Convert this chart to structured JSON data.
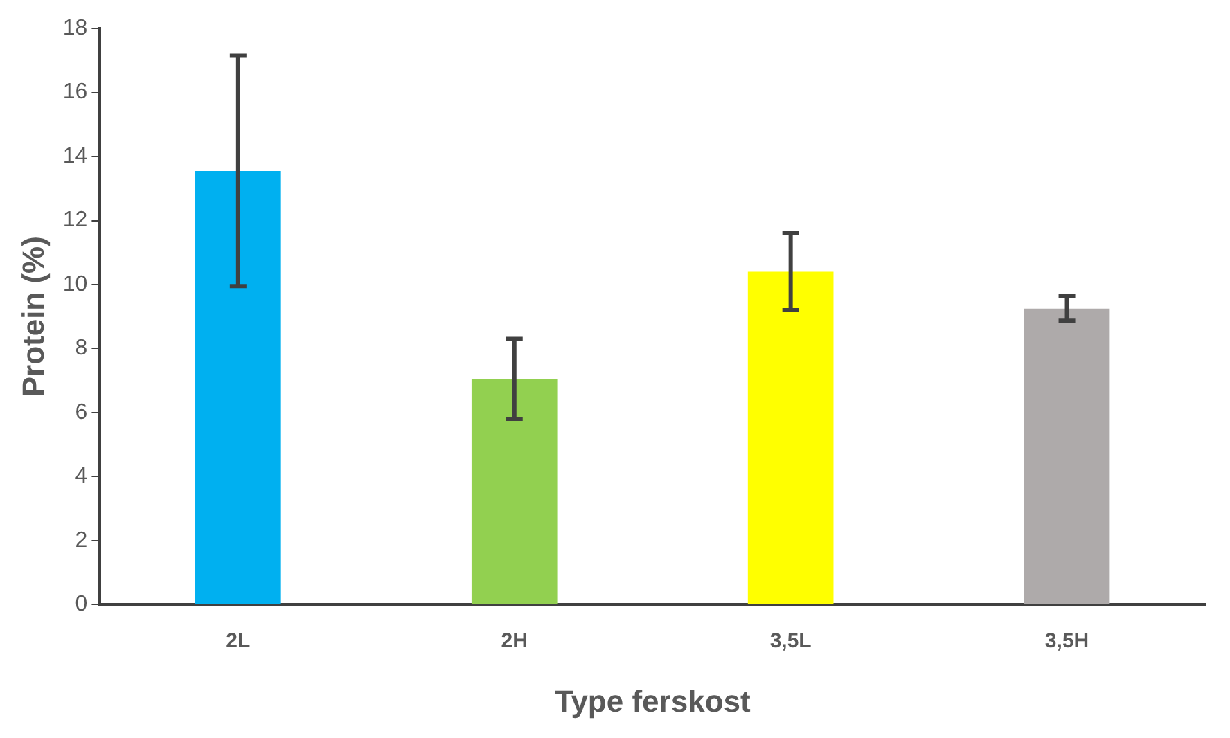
{
  "chart_data": {
    "type": "bar",
    "xlabel": "Type ferskost",
    "ylabel": "Protein (%)",
    "categories": [
      "2L",
      "2H",
      "3,5L",
      "3,5H"
    ],
    "values": [
      13.55,
      7.05,
      10.4,
      9.25
    ],
    "colors": [
      "#00b0f0",
      "#92d050",
      "#ffff00",
      "#aeaaaa"
    ],
    "errors": [
      3.6,
      1.25,
      1.2,
      0.38
    ],
    "ylim": [
      0,
      18
    ],
    "yticks": [
      0,
      2,
      4,
      6,
      8,
      10,
      12,
      14,
      16,
      18
    ],
    "grid": false,
    "legend": false
  }
}
